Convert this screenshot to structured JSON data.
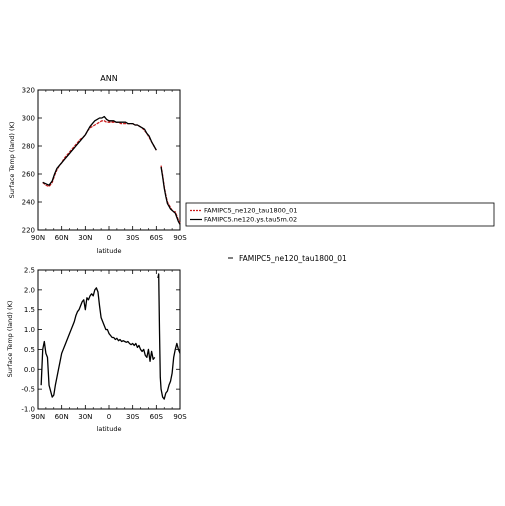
{
  "colors": {
    "ctrl": "#cc1f1f",
    "expt": "#000000",
    "diff": "#000000"
  },
  "side_label": "FAMIPC5_ne120_tau1800_01",
  "chart_data": [
    {
      "type": "line",
      "title": "ANN",
      "xlabel": "latitude",
      "ylabel": "Surface Temp (land) (K)",
      "x_ticks": [
        "90N",
        "60N",
        "30N",
        "0",
        "30S",
        "60S",
        "90S"
      ],
      "x_tick_values": [
        90,
        60,
        30,
        0,
        -30,
        -60,
        -90
      ],
      "y_ticks": [
        "220",
        "240",
        "260",
        "280",
        "300",
        "320"
      ],
      "xlim": [
        90,
        -90
      ],
      "ylim": [
        220,
        320
      ],
      "legend": {
        "placement": "right",
        "entries": [
          "FAMIPC5_ne120_tau1800_01",
          "FAMIPC5.ne120.ys.tau5m.02"
        ]
      },
      "series": [
        {
          "name": "FAMIPC5_ne120_tau1800_01",
          "color": "#cc1f1f",
          "dashed": true,
          "segments": [
            [
              [
                84,
                254
              ],
              [
                80,
                252
              ],
              [
                76,
                251
              ],
              [
                72,
                254
              ],
              [
                69,
                259
              ],
              [
                66,
                263
              ],
              [
                63,
                266
              ],
              [
                60,
                268
              ],
              [
                57,
                271
              ],
              [
                54,
                273
              ],
              [
                51,
                275
              ],
              [
                48,
                277
              ],
              [
                45,
                279
              ],
              [
                42,
                281
              ],
              [
                39,
                283
              ],
              [
                36,
                285
              ],
              [
                33,
                286
              ],
              [
                30,
                288
              ],
              [
                27,
                291
              ],
              [
                24,
                293
              ],
              [
                21,
                294
              ],
              [
                18,
                295
              ],
              [
                15,
                296
              ],
              [
                12,
                297
              ],
              [
                9,
                298
              ],
              [
                6,
                298
              ],
              [
                3,
                297
              ],
              [
                0,
                297
              ],
              [
                -3,
                297
              ],
              [
                -6,
                297
              ],
              [
                -9,
                297
              ],
              [
                -12,
                297
              ],
              [
                -15,
                296
              ],
              [
                -18,
                296
              ],
              [
                -21,
                296
              ],
              [
                -24,
                296
              ],
              [
                -27,
                296
              ],
              [
                -30,
                296
              ],
              [
                -33,
                295
              ],
              [
                -36,
                295
              ],
              [
                -39,
                294
              ],
              [
                -42,
                293
              ],
              [
                -45,
                291
              ],
              [
                -48,
                289
              ],
              [
                -51,
                286
              ],
              [
                -54,
                283
              ],
              [
                -57,
                280
              ],
              [
                -60,
                277
              ]
            ],
            [
              [
                -66,
                266
              ],
              [
                -68,
                259
              ],
              [
                -70,
                251
              ],
              [
                -72,
                245
              ],
              [
                -74,
                240
              ],
              [
                -76,
                238
              ],
              [
                -78,
                236
              ],
              [
                -80,
                234
              ],
              [
                -82,
                233
              ],
              [
                -84,
                233
              ],
              [
                -86,
                230
              ],
              [
                -88,
                227
              ],
              [
                -90,
                225
              ]
            ]
          ]
        },
        {
          "name": "FAMIPC5.ne120.ys.tau5m.02",
          "color": "#000000",
          "dashed": false,
          "segments": [
            [
              [
                84,
                254
              ],
              [
                80,
                253
              ],
              [
                76,
                252
              ],
              [
                72,
                255
              ],
              [
                69,
                260
              ],
              [
                66,
                264
              ],
              [
                63,
                266
              ],
              [
                60,
                268
              ],
              [
                57,
                270
              ],
              [
                54,
                272
              ],
              [
                51,
                274
              ],
              [
                48,
                276
              ],
              [
                45,
                278
              ],
              [
                42,
                280
              ],
              [
                39,
                282
              ],
              [
                36,
                284
              ],
              [
                33,
                286
              ],
              [
                30,
                288
              ],
              [
                27,
                291
              ],
              [
                24,
                294
              ],
              [
                21,
                296
              ],
              [
                18,
                298
              ],
              [
                15,
                299
              ],
              [
                12,
                300
              ],
              [
                9,
                300
              ],
              [
                6,
                301
              ],
              [
                3,
                299
              ],
              [
                0,
                298
              ],
              [
                -3,
                298
              ],
              [
                -6,
                298
              ],
              [
                -9,
                297
              ],
              [
                -12,
                297
              ],
              [
                -15,
                297
              ],
              [
                -18,
                297
              ],
              [
                -21,
                297
              ],
              [
                -24,
                296
              ],
              [
                -27,
                296
              ],
              [
                -30,
                296
              ],
              [
                -33,
                295
              ],
              [
                -36,
                295
              ],
              [
                -39,
                294
              ],
              [
                -42,
                293
              ],
              [
                -45,
                292
              ],
              [
                -48,
                289
              ],
              [
                -51,
                287
              ],
              [
                -54,
                283
              ],
              [
                -57,
                280
              ],
              [
                -60,
                277
              ]
            ],
            [
              [
                -66,
                265
              ],
              [
                -68,
                258
              ],
              [
                -70,
                250
              ],
              [
                -72,
                244
              ],
              [
                -74,
                239
              ],
              [
                -76,
                237
              ],
              [
                -78,
                235
              ],
              [
                -80,
                234
              ],
              [
                -82,
                233
              ],
              [
                -84,
                232
              ],
              [
                -86,
                229
              ],
              [
                -88,
                226
              ],
              [
                -90,
                224
              ]
            ]
          ]
        }
      ]
    },
    {
      "type": "line",
      "title": "",
      "xlabel": "latitude",
      "ylabel": "Surface Temp (land) (K)",
      "x_ticks": [
        "90N",
        "60N",
        "30N",
        "0",
        "30S",
        "60S",
        "90S"
      ],
      "x_tick_values": [
        90,
        60,
        30,
        0,
        -30,
        -60,
        -90
      ],
      "y_ticks": [
        "-1.0",
        "-0.5",
        "0.0",
        "0.5",
        "1.0",
        "1.5",
        "2.0",
        "2.5"
      ],
      "xlim": [
        90,
        -90
      ],
      "ylim": [
        -1.0,
        2.5
      ],
      "series": [
        {
          "color": "#000000",
          "dashed": false,
          "segments": [
            [
              [
                86,
                -0.4
              ],
              [
                84,
                0.5
              ],
              [
                82,
                0.7
              ],
              [
                80,
                0.4
              ],
              [
                78,
                0.3
              ],
              [
                76,
                -0.4
              ],
              [
                74,
                -0.55
              ],
              [
                72,
                -0.7
              ],
              [
                70,
                -0.65
              ],
              [
                68,
                -0.4
              ],
              [
                66,
                -0.2
              ],
              [
                64,
                0.0
              ],
              [
                62,
                0.2
              ],
              [
                60,
                0.4
              ],
              [
                58,
                0.5
              ],
              [
                56,
                0.6
              ],
              [
                54,
                0.7
              ],
              [
                52,
                0.8
              ],
              [
                50,
                0.9
              ],
              [
                48,
                1.0
              ],
              [
                46,
                1.1
              ],
              [
                44,
                1.2
              ],
              [
                42,
                1.35
              ],
              [
                40,
                1.45
              ],
              [
                38,
                1.5
              ],
              [
                36,
                1.6
              ],
              [
                34,
                1.7
              ],
              [
                32,
                1.75
              ],
              [
                30,
                1.5
              ],
              [
                28,
                1.8
              ],
              [
                26,
                1.75
              ],
              [
                24,
                1.85
              ],
              [
                22,
                1.9
              ],
              [
                20,
                1.85
              ],
              [
                18,
                2.0
              ],
              [
                16,
                2.05
              ],
              [
                14,
                1.95
              ],
              [
                12,
                1.6
              ],
              [
                10,
                1.3
              ],
              [
                8,
                1.2
              ],
              [
                6,
                1.1
              ],
              [
                4,
                1.0
              ],
              [
                2,
                1.0
              ],
              [
                0,
                0.9
              ],
              [
                -2,
                0.85
              ],
              [
                -4,
                0.8
              ],
              [
                -6,
                0.8
              ],
              [
                -8,
                0.75
              ],
              [
                -10,
                0.78
              ],
              [
                -12,
                0.72
              ],
              [
                -14,
                0.75
              ],
              [
                -16,
                0.7
              ],
              [
                -18,
                0.72
              ],
              [
                -20,
                0.7
              ],
              [
                -22,
                0.68
              ],
              [
                -24,
                0.7
              ],
              [
                -26,
                0.65
              ],
              [
                -28,
                0.62
              ],
              [
                -30,
                0.65
              ],
              [
                -32,
                0.6
              ],
              [
                -34,
                0.65
              ],
              [
                -36,
                0.55
              ],
              [
                -38,
                0.6
              ],
              [
                -40,
                0.5
              ],
              [
                -42,
                0.45
              ],
              [
                -44,
                0.5
              ],
              [
                -46,
                0.35
              ],
              [
                -48,
                0.3
              ],
              [
                -50,
                0.5
              ],
              [
                -52,
                0.2
              ],
              [
                -54,
                0.45
              ],
              [
                -56,
                0.25
              ],
              [
                -58,
                0.3
              ]
            ],
            [
              [
                -62,
                2.3
              ],
              [
                -63,
                2.4
              ],
              [
                -64,
                1.0
              ],
              [
                -65,
                -0.2
              ],
              [
                -66,
                -0.5
              ],
              [
                -68,
                -0.7
              ],
              [
                -70,
                -0.75
              ],
              [
                -72,
                -0.6
              ],
              [
                -74,
                -0.55
              ],
              [
                -76,
                -0.4
              ],
              [
                -78,
                -0.3
              ],
              [
                -80,
                -0.1
              ],
              [
                -82,
                0.3
              ],
              [
                -84,
                0.5
              ],
              [
                -86,
                0.65
              ],
              [
                -88,
                0.5
              ],
              [
                -90,
                0.4
              ]
            ]
          ]
        }
      ]
    }
  ]
}
